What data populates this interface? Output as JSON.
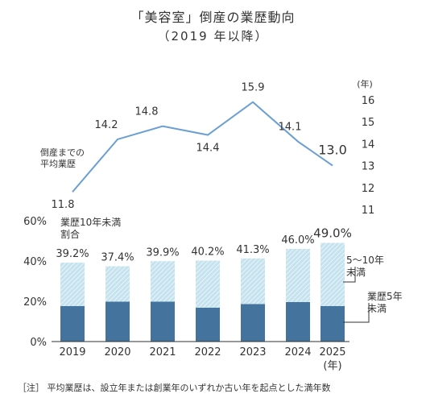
{
  "title": "「美容室」倒産の業歴動向",
  "subtitle": "（2019 年以降）",
  "note": "［注］ 平均業歴は、設立年または創業年のいずれか古い年を起点とした満年数",
  "chart_data": [
    {
      "type": "line",
      "label": "倒産までの\n平均業歴",
      "unit": "(年)",
      "x": [
        "2019",
        "2020",
        "2021",
        "2022",
        "2023",
        "2024",
        "2025"
      ],
      "values": [
        11.8,
        14.2,
        14.8,
        14.4,
        15.9,
        14.1,
        13.0
      ],
      "ylim": [
        11,
        16
      ],
      "yticks": [
        "16",
        "15",
        "14",
        "13",
        "12",
        "11"
      ],
      "color": "#6a9fd4"
    },
    {
      "type": "bar",
      "stacked": true,
      "categories": [
        "2019",
        "2020",
        "2021",
        "2022",
        "2023",
        "2024",
        "2025"
      ],
      "xunit": "(年)",
      "ylim": [
        0,
        60
      ],
      "yticks": [
        "0%",
        "20%",
        "40%",
        "60%"
      ],
      "series": [
        {
          "name": "業歴5年\n未満",
          "values": [
            17.6,
            19.8,
            19.8,
            16.8,
            18.6,
            19.6,
            17.6
          ],
          "color": "#44739e"
        },
        {
          "name": "5～10年\n未満",
          "values": [
            21.6,
            17.6,
            20.1,
            23.4,
            22.7,
            26.4,
            31.4
          ],
          "color": "#c5e3ee"
        }
      ],
      "totals_label": "業歴10年未満\n割合",
      "totals": [
        "39.2%",
        "37.4%",
        "39.9%",
        "40.2%",
        "41.3%",
        "46.0%",
        "49.0%"
      ]
    }
  ]
}
